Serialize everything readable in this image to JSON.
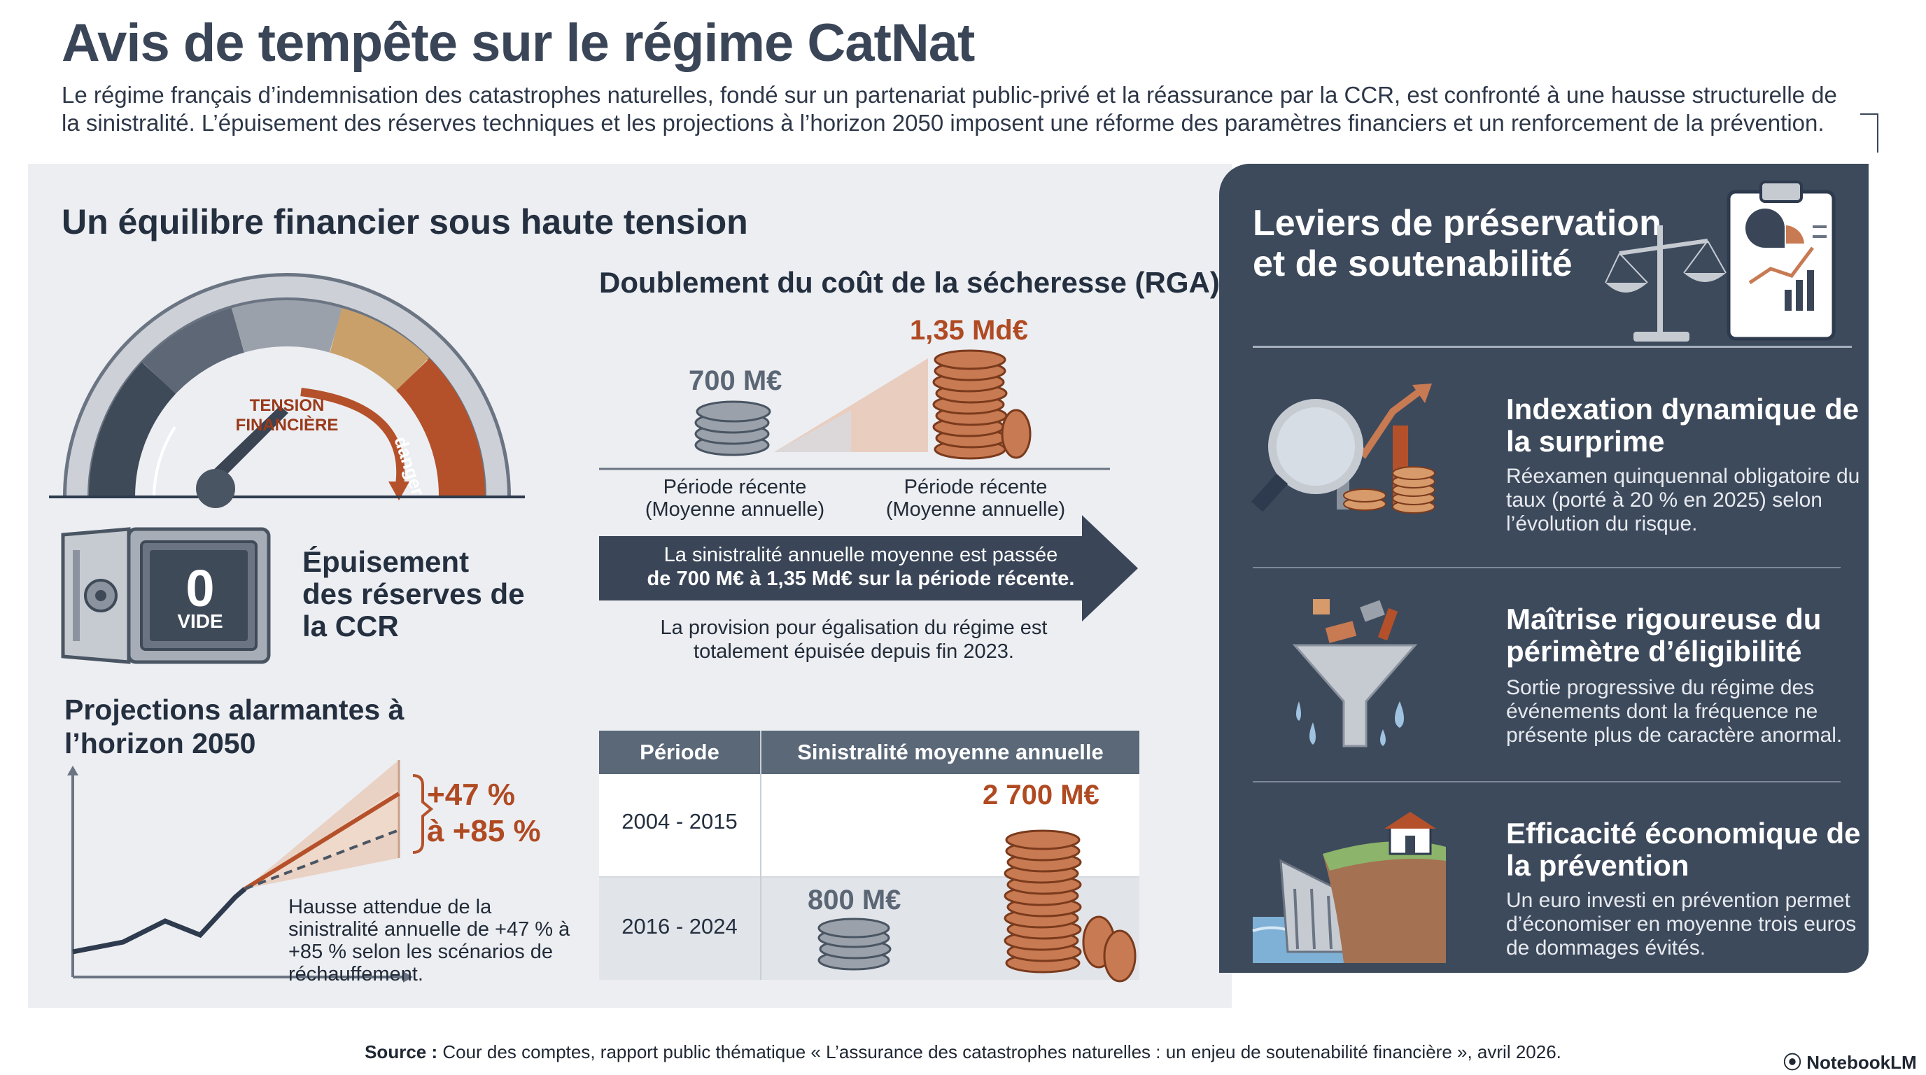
{
  "title": "Avis de tempête sur le régime CatNat",
  "intro": "Le régime français d’indemnisation des catastrophes naturelles, fondé sur un partenariat public-privé et la réassurance par la CCR, est confronté à une hausse structurelle de la sinistralité. L’épuisement des réserves techniques et les projections à l’horizon 2050 imposent une réforme des paramètres financiers et un renforcement de la prévention.",
  "left": {
    "heading": "Un équilibre financier sous haute tension",
    "gauge": {
      "label": "TENSION FINANCIÈRE",
      "danger_label": "danger"
    },
    "safe": {
      "value": "0",
      "label": "VIDE"
    },
    "reserves_title": "Épuisement des réserves de la CCR",
    "projections": {
      "heading": "Projections alarmantes à l’horizon 2050",
      "range_low": "+47 %",
      "range_high": "à +85 %",
      "description": "Hausse attendue de la sinistralité annuelle de +47 % à +85 % selon les scénarios de réchauffement."
    }
  },
  "drought": {
    "heading": "Doublement du coût de la sécheresse (RGA)",
    "before_value": "700 M€",
    "after_value": "1,35 Md€",
    "before_label_1": "Période récente",
    "before_label_2": "(Moyenne annuelle)",
    "after_label_1": "Période récente",
    "after_label_2": "(Moyenne annuelle)",
    "arrow_line_1": "La sinistralité annuelle moyenne est passée",
    "arrow_line_2": "de 700 M€ à 1,35 Md€ sur la période récente.",
    "provision": "La provision pour égalisation du régime est totalement épuisée depuis fin 2023."
  },
  "table": {
    "col_period": "Période",
    "col_value": "Sinistralité moyenne annuelle",
    "rows": [
      {
        "period": "2004 - 2015",
        "value": "2 700 M€"
      },
      {
        "period": "2016 - 2024",
        "value": "800 M€"
      }
    ]
  },
  "right": {
    "heading": "Leviers de préservation et de soutenabilité",
    "levers": [
      {
        "title": "Indexation dynamique de la surprime",
        "desc": "Réexamen quinquennal obligatoire du taux (porté à 20 % en 2025) selon l’évolution du risque.",
        "icon": "magnifier-chart-icon"
      },
      {
        "title": "Maîtrise rigoureuse du périmètre d’éligibilité",
        "desc": "Sortie progressive du régime des événements dont la fréquence ne présente plus de caractère anormal.",
        "icon": "funnel-icon"
      },
      {
        "title": "Efficacité économique de la prévention",
        "desc": "Un euro investi en prévention permet d’économiser en moyenne trois euros de dommages évités.",
        "icon": "dam-house-icon"
      }
    ]
  },
  "source_label": "Source :",
  "source_text": " Cour des comptes, rapport public thématique « L’assurance des catastrophes naturelles : un enjeu de soutenabilité financière », avril 2026.",
  "brand": "NotebookLM",
  "colors": {
    "accent": "#b04a22",
    "navy": "#3d4a5c",
    "panel": "#eceef2",
    "slate": "#5a6878"
  }
}
